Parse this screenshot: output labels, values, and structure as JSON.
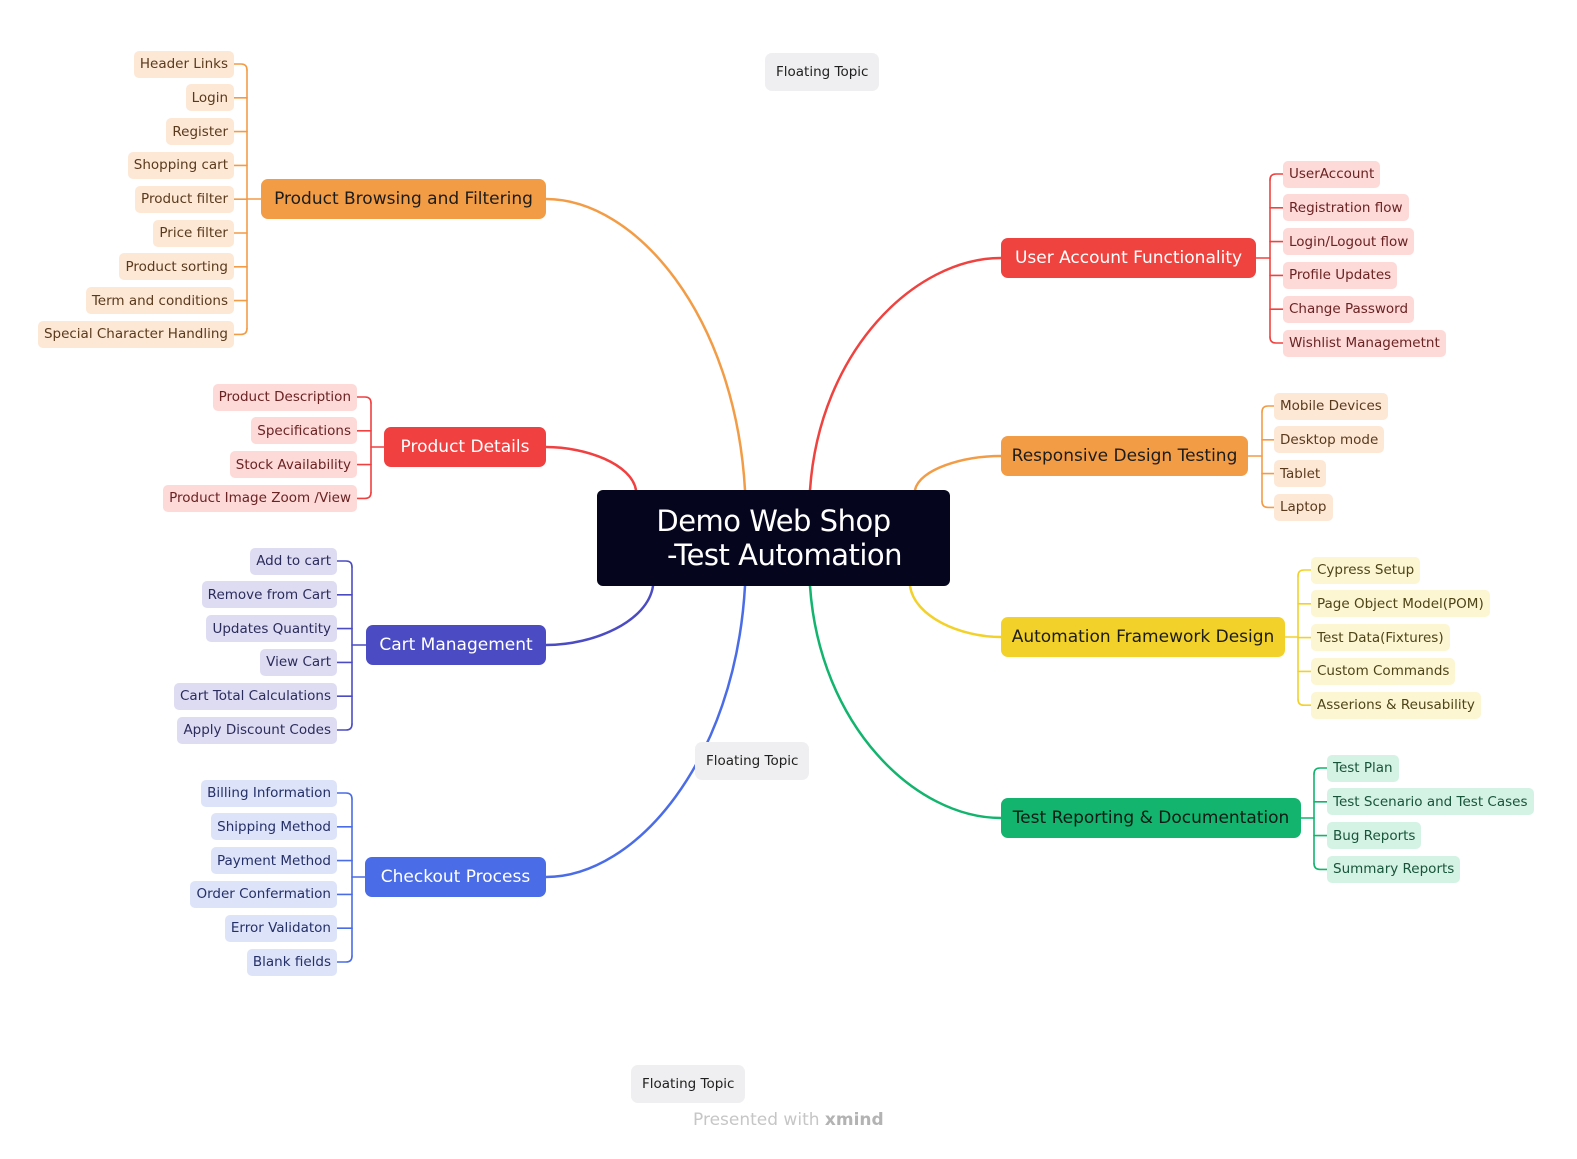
{
  "central_topic": {
    "line1": "Demo Web Shop",
    "line2": "-Test Automation"
  },
  "branches": [
    {
      "id": "browsing",
      "label": "Product Browsing and Filtering",
      "color": "#f39c46",
      "text_color": "#1c1c1c",
      "children": [
        "Header Links",
        "Login",
        "Register",
        "Shopping cart",
        "Product filter",
        "Price filter",
        "Product sorting",
        "Term and conditions",
        "Special Character Handling"
      ],
      "child_bg": "#fde8d6",
      "child_text": "#5a3a1c"
    },
    {
      "id": "details",
      "label": "Product Details",
      "color": "#f04040",
      "text_color": "#ffffff",
      "children": [
        "Product Description",
        "Specifications",
        "Stock Availability",
        "Product Image Zoom /View"
      ],
      "child_bg": "#fdd9d8",
      "child_text": "#6a2323"
    },
    {
      "id": "cart",
      "label": "Cart Management",
      "color": "#4b4cc4",
      "text_color": "#ffffff",
      "children": [
        "Add to cart",
        "Remove from Cart",
        "Updates Quantity",
        "View Cart",
        "Cart Total Calculations",
        "Apply Discount Codes"
      ],
      "child_bg": "#dddcf3",
      "child_text": "#2c2c5c"
    },
    {
      "id": "checkout",
      "label": "Checkout Process",
      "color": "#4a6ce6",
      "text_color": "#ffffff",
      "children": [
        "Billing Information",
        "Shipping Method",
        "Payment Method",
        "Order Confermation",
        "Error Validaton",
        "Blank fields"
      ],
      "child_bg": "#dde3f9",
      "child_text": "#253068"
    },
    {
      "id": "account",
      "label": "User Account Functionality",
      "color": "#ef4340",
      "text_color": "#ffffff",
      "children": [
        "UserAccount",
        "Registration flow",
        "Login/Logout flow",
        "Profile Updates",
        "Change Password",
        "Wishlist Managemetnt"
      ],
      "child_bg": "#fdd9d8",
      "child_text": "#6a2323"
    },
    {
      "id": "responsive",
      "label": "Responsive Design Testing",
      "color": "#f39c46",
      "text_color": "#1c1c1c",
      "children": [
        "Mobile Devices",
        "Desktop mode",
        "Tablet",
        "Laptop"
      ],
      "child_bg": "#fde8d6",
      "child_text": "#5a3a1c"
    },
    {
      "id": "framework",
      "label": "Automation Framework Design",
      "color": "#f2d22a",
      "text_color": "#1c1c1c",
      "children": [
        "Cypress Setup",
        "Page Object Model(POM)",
        "Test Data(Fixtures)",
        "Custom Commands",
        "Asserions & Reusability"
      ],
      "child_bg": "#fdf6d2",
      "child_text": "#4d4417"
    },
    {
      "id": "reporting",
      "label": "Test Reporting & Documentation",
      "color": "#12b46e",
      "text_color": "#0d1c14",
      "children": [
        "Test Plan",
        "Test Scenario and Test Cases",
        "Bug Reports",
        "Summary Reports"
      ],
      "child_bg": "#d5f3e5",
      "child_text": "#17543a"
    }
  ],
  "floating_topics": [
    "Floating Topic",
    "Floating Topic",
    "Floating Topic"
  ],
  "footer": {
    "prefix": "Presented with",
    "brand": "xmind"
  }
}
